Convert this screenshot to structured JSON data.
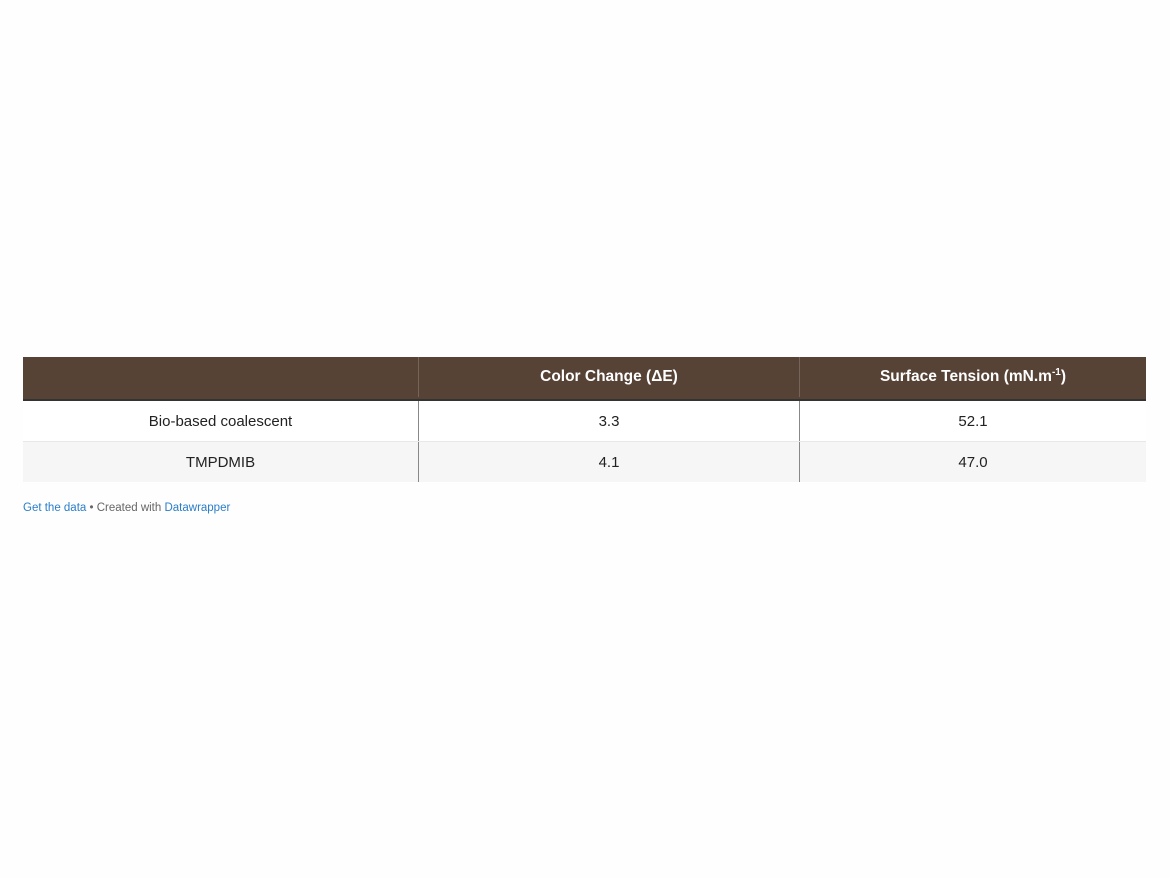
{
  "table": {
    "header": {
      "col0": "",
      "col1": "Color Change (ΔE)",
      "col2_main": "Surface Tension (mN.m",
      "col2_sup": "-1",
      "col2_end": ")"
    },
    "rows": [
      {
        "name": "Bio-based coalescent",
        "color_change": "3.3",
        "surface_tension": "52.1"
      },
      {
        "name": "TMPDMIB",
        "color_change": "4.1",
        "surface_tension": "47.0"
      }
    ],
    "colors": {
      "header_bg": "#574236",
      "link": "#2a7ec9"
    }
  },
  "footer": {
    "get_data": "Get the data",
    "separator": " • Created with ",
    "datawrapper": "Datawrapper"
  }
}
